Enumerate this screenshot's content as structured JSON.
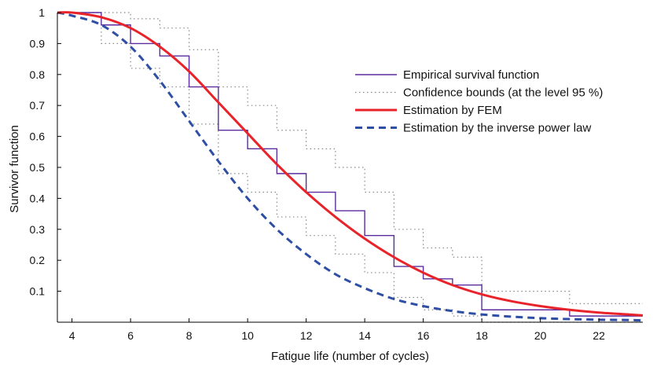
{
  "chart_data": {
    "type": "line",
    "xlabel": "Fatigue life (number of cycles)",
    "ylabel": "Survivor function",
    "xlim": [
      3.5,
      23.5
    ],
    "ylim": [
      0,
      1
    ],
    "xticks": [
      4,
      6,
      8,
      10,
      12,
      14,
      16,
      18,
      20,
      22
    ],
    "yticks": [
      0.1,
      0.2,
      0.3,
      0.4,
      0.5,
      0.6,
      0.7,
      0.8,
      0.9,
      1
    ],
    "xtick_labels": [
      "4",
      "6",
      "8",
      "10",
      "12",
      "14",
      "16",
      "18",
      "20",
      "22"
    ],
    "ytick_labels": [
      "0.1",
      "0.2",
      "0.3",
      "0.4",
      "0.5",
      "0.6",
      "0.7",
      "0.8",
      "0.9",
      "1"
    ],
    "grid": false,
    "legend_position": "top-right",
    "series": [
      {
        "name": "Empirical survival function",
        "style": "step",
        "color": "#5b2d9e",
        "x": [
          3.5,
          5,
          6,
          7,
          8,
          9,
          10,
          11,
          12,
          13,
          14,
          15,
          16,
          17,
          18,
          21,
          23.5
        ],
        "y": [
          1.0,
          0.96,
          0.9,
          0.86,
          0.76,
          0.62,
          0.56,
          0.48,
          0.42,
          0.36,
          0.28,
          0.18,
          0.14,
          0.12,
          0.04,
          0.02,
          0.02
        ]
      },
      {
        "name": "Confidence bounds (at the level 95 %)",
        "style": "step-dotted",
        "color": "#888888",
        "x": [
          3.5,
          5,
          6,
          7,
          8,
          9,
          10,
          11,
          12,
          13,
          14,
          15,
          16,
          17,
          18,
          21,
          23.5
        ],
        "y": [
          1.0,
          1.0,
          0.98,
          0.95,
          0.88,
          0.76,
          0.7,
          0.62,
          0.56,
          0.5,
          0.42,
          0.3,
          0.24,
          0.21,
          0.1,
          0.06,
          0.06
        ]
      },
      {
        "name": "",
        "style": "step-dotted",
        "color": "#888888",
        "x": [
          3.5,
          5,
          6,
          7,
          8,
          9,
          10,
          11,
          12,
          13,
          14,
          15,
          16,
          17,
          18,
          21,
          23.5
        ],
        "y": [
          1.0,
          0.9,
          0.82,
          0.76,
          0.64,
          0.48,
          0.42,
          0.34,
          0.28,
          0.22,
          0.16,
          0.08,
          0.04,
          0.02,
          0.0,
          0.0,
          0.0
        ]
      },
      {
        "name": "Estimation by FEM",
        "style": "solid",
        "color": "#e8232a",
        "x": [
          3.5,
          4,
          5,
          6,
          7,
          8,
          9,
          10,
          11,
          12,
          13,
          14,
          15,
          16,
          17,
          18,
          19,
          20,
          21,
          22,
          23,
          23.5
        ],
        "y": [
          1.0,
          1.0,
          0.985,
          0.95,
          0.89,
          0.81,
          0.71,
          0.61,
          0.51,
          0.42,
          0.34,
          0.27,
          0.21,
          0.16,
          0.12,
          0.09,
          0.068,
          0.052,
          0.04,
          0.031,
          0.025,
          0.022
        ]
      },
      {
        "name": "Estimation by the inverse power law",
        "style": "dashed",
        "color": "#2e4fa3",
        "x": [
          3.5,
          4,
          5,
          6,
          7,
          8,
          9,
          10,
          11,
          12,
          13,
          14,
          15,
          16,
          17,
          18,
          19,
          20,
          21,
          22,
          23,
          23.5
        ],
        "y": [
          1.0,
          0.99,
          0.96,
          0.89,
          0.78,
          0.65,
          0.52,
          0.4,
          0.3,
          0.22,
          0.155,
          0.11,
          0.075,
          0.052,
          0.036,
          0.025,
          0.018,
          0.013,
          0.01,
          0.008,
          0.007,
          0.006
        ]
      }
    ]
  }
}
